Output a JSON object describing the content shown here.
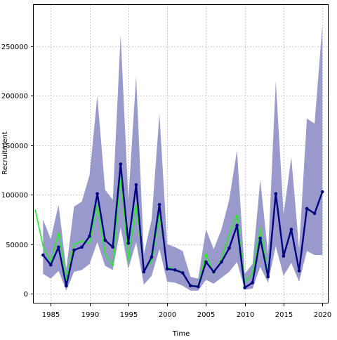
{
  "chart_data": {
    "type": "line",
    "title": "",
    "xlabel": "Time",
    "ylabel": "Recruitment",
    "xlim": [
      1982.8,
      2020.8
    ],
    "ylim": [
      -10000,
      292000
    ],
    "grid": true,
    "xticks": [
      1985,
      1990,
      1995,
      2000,
      2005,
      2010,
      2015,
      2020
    ],
    "yticks": [
      0,
      50000,
      100000,
      150000,
      200000,
      250000
    ],
    "colors": {
      "band": "#9999cc",
      "estimate": "#000080",
      "observed": "#22ee22"
    },
    "band": {
      "x": [
        1984,
        1985,
        1986,
        1987,
        1988,
        1989,
        1990,
        1991,
        1992,
        1993,
        1994,
        1995,
        1996,
        1997,
        1998,
        1999,
        2000,
        2001,
        2002,
        2003,
        2004,
        2005,
        2006,
        2007,
        2008,
        2009,
        2010,
        2011,
        2012,
        2013,
        2014,
        2015,
        2016,
        2017,
        2018,
        2019,
        2020
      ],
      "lower": [
        20000,
        15000,
        23000,
        3000,
        22000,
        24000,
        30000,
        52000,
        28000,
        24000,
        67000,
        25000,
        52000,
        9000,
        18000,
        45000,
        12000,
        11000,
        8000,
        3000,
        3000,
        14000,
        10000,
        16000,
        22000,
        32000,
        4000,
        5000,
        27000,
        11000,
        48000,
        18000,
        31000,
        12000,
        43000,
        39000,
        39000
      ],
      "upper": [
        75000,
        55000,
        90000,
        25000,
        88000,
        93000,
        120000,
        200000,
        105000,
        95000,
        262000,
        95000,
        220000,
        40000,
        75000,
        182000,
        50000,
        47000,
        43000,
        17000,
        15000,
        65000,
        45000,
        65000,
        95000,
        145000,
        20000,
        30000,
        115000,
        40000,
        215000,
        80000,
        138000,
        45000,
        177000,
        172000,
        272000
      ]
    },
    "series": [
      {
        "name": "",
        "role": "estimate",
        "x": [
          1984,
          1985,
          1986,
          1987,
          1988,
          1989,
          1990,
          1991,
          1992,
          1993,
          1994,
          1995,
          1996,
          1997,
          1998,
          1999,
          2000,
          2001,
          2002,
          2003,
          2004,
          2005,
          2006,
          2007,
          2008,
          2009,
          2010,
          2011,
          2012,
          2013,
          2014,
          2015,
          2016,
          2017,
          2018,
          2019,
          2020
        ],
        "values": [
          39000,
          29000,
          47000,
          8000,
          44000,
          47000,
          58000,
          101000,
          54000,
          47000,
          131000,
          51000,
          110000,
          22000,
          37000,
          90000,
          25000,
          24000,
          21000,
          8000,
          7000,
          32000,
          22000,
          32000,
          46000,
          69000,
          6000,
          11000,
          56000,
          17000,
          101000,
          38000,
          65000,
          23000,
          86000,
          81000,
          103000
        ]
      },
      {
        "name": "",
        "role": "observed",
        "x": [
          1983,
          1984,
          1985,
          1986,
          1987,
          1988,
          1989,
          1990,
          1991,
          1992,
          1993,
          1994,
          1995,
          1996,
          1997,
          1998,
          1999,
          2000,
          2001,
          2002,
          2003,
          2004,
          2005,
          2006,
          2007,
          2008,
          2009,
          2010,
          2011,
          2012,
          2013
        ],
        "values": [
          85000,
          48000,
          32000,
          62000,
          14000,
          50000,
          53000,
          51000,
          90000,
          40000,
          28000,
          120000,
          33000,
          90000,
          24000,
          32000,
          80000,
          27000,
          24000,
          22000,
          8000,
          8000,
          40000,
          20000,
          35000,
          60000,
          80000,
          11000,
          20000,
          66000,
          20000
        ]
      }
    ]
  }
}
